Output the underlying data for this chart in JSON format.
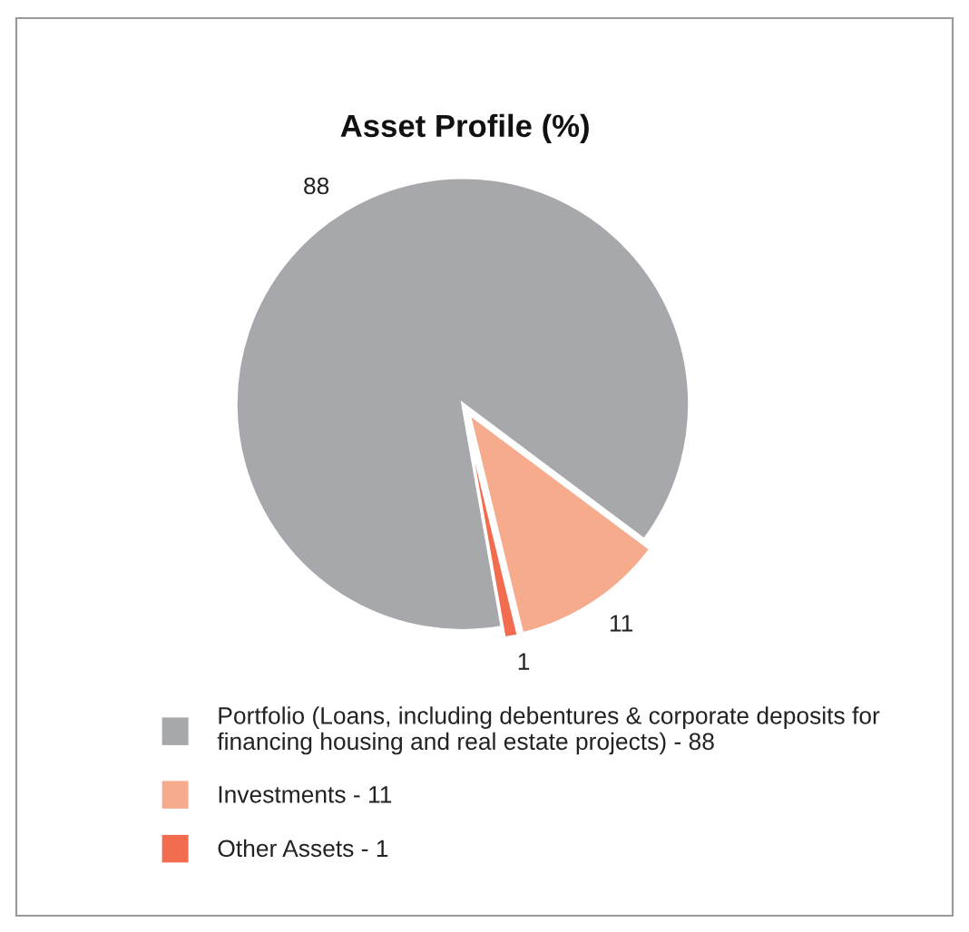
{
  "chart_data": {
    "type": "pie",
    "title": "Asset Profile (%)",
    "categories": [
      "Portfolio (Loans, including debentures & corporate deposits for\nfinancing housing and real estate projects) - 88",
      "Investments - 11",
      "Other Assets - 1"
    ],
    "values": [
      88,
      11,
      1
    ],
    "colors": [
      "#a7a8ab",
      "#f7ab8d",
      "#f26c50"
    ],
    "data_labels": true,
    "legend": "bottom"
  }
}
